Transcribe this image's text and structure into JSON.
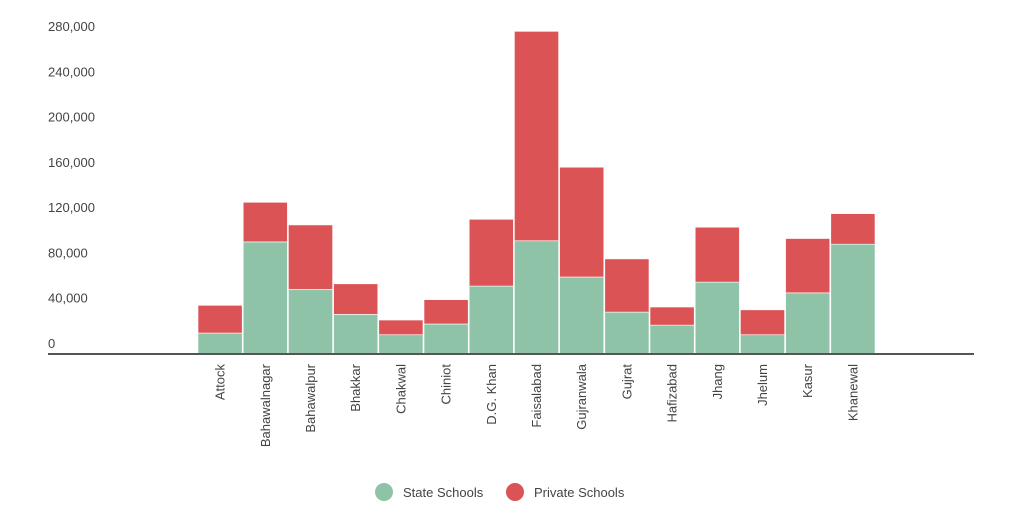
{
  "chart_data": {
    "type": "bar",
    "stacked": true,
    "categories": [
      "Attock",
      "Bahawalnagar",
      "Bahawalpur",
      "Bhakkar",
      "Chakwal",
      "Chiniot",
      "D.G. Khan",
      "Faisalabad",
      "Gujranwala",
      "Gujrat",
      "Hafizabad",
      "Jhang",
      "Jhelum",
      "Kasur",
      "Khanewal"
    ],
    "series": [
      {
        "name": "State Schools",
        "color": "#8fc3a8",
        "values": [
          18500,
          99000,
          57000,
          35000,
          17000,
          26500,
          60000,
          100000,
          68000,
          37000,
          25500,
          63500,
          17000,
          54000,
          97000
        ]
      },
      {
        "name": "Private Schools",
        "color": "#dc5356",
        "values": [
          24500,
          35000,
          57000,
          27000,
          13000,
          21500,
          59000,
          185000,
          97000,
          47000,
          16000,
          48500,
          22000,
          48000,
          27000
        ]
      }
    ],
    "yticks": [
      "0",
      "40,000",
      "80,000",
      "120,000",
      "160,000",
      "200,000",
      "240,000",
      "280,000"
    ],
    "ylim": [
      0,
      280000
    ],
    "grid": false,
    "legend": "bottom",
    "title": "",
    "xlabel": "",
    "ylabel": ""
  }
}
